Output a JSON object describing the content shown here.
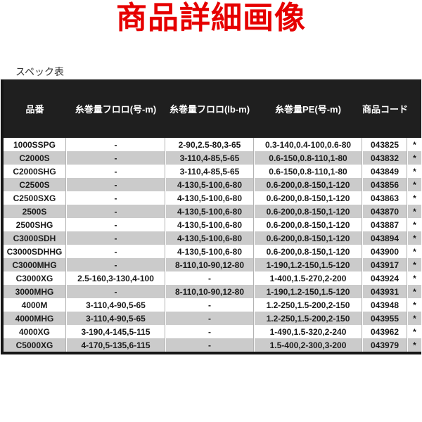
{
  "title": {
    "text": "商品詳細画像",
    "color": "#e60000"
  },
  "table": {
    "caption": "スペック表",
    "columns": [
      "品番",
      "糸巻量フロロ(号-m)",
      "糸巻量フロロ(lb-m)",
      "糸巻量PE(号-m)",
      "商品コード",
      ""
    ],
    "rows": [
      [
        "1000SSPG",
        "-",
        "2-90,2.5-80,3-65",
        "0.3-140,0.4-100,0.6-80",
        "043825",
        "*"
      ],
      [
        "C2000S",
        "-",
        "3-110,4-85,5-65",
        "0.6-150,0.8-110,1-80",
        "043832",
        "*"
      ],
      [
        "C2000SHG",
        "-",
        "3-110,4-85,5-65",
        "0.6-150,0.8-110,1-80",
        "043849",
        "*"
      ],
      [
        "C2500S",
        "-",
        "4-130,5-100,6-80",
        "0.6-200,0.8-150,1-120",
        "043856",
        "*"
      ],
      [
        "C2500SXG",
        "-",
        "4-130,5-100,6-80",
        "0.6-200,0.8-150,1-120",
        "043863",
        "*"
      ],
      [
        "2500S",
        "-",
        "4-130,5-100,6-80",
        "0.6-200,0.8-150,1-120",
        "043870",
        "*"
      ],
      [
        "2500SHG",
        "-",
        "4-130,5-100,6-80",
        "0.6-200,0.8-150,1-120",
        "043887",
        "*"
      ],
      [
        "C3000SDH",
        "-",
        "4-130,5-100,6-80",
        "0.6-200,0.8-150,1-120",
        "043894",
        "*"
      ],
      [
        "C3000SDHHG",
        "-",
        "4-130,5-100,6-80",
        "0.6-200,0.8-150,1-120",
        "043900",
        "*"
      ],
      [
        "C3000MHG",
        "-",
        "8-110,10-90,12-80",
        "1-190,1.2-150,1.5-120",
        "043917",
        "*"
      ],
      [
        "C3000XG",
        "2.5-160,3-130,4-100",
        "-",
        "1-400,1.5-270,2-200",
        "043924",
        "*"
      ],
      [
        "3000MHG",
        "-",
        "8-110,10-90,12-80",
        "1-190,1.2-150,1.5-120",
        "043931",
        "*"
      ],
      [
        "4000M",
        "3-110,4-90,5-65",
        "-",
        "1.2-250,1.5-200,2-150",
        "043948",
        "*"
      ],
      [
        "4000MHG",
        "3-110,4-90,5-65",
        "-",
        "1.2-250,1.5-200,2-150",
        "043955",
        "*"
      ],
      [
        "4000XG",
        "3-190,4-145,5-115",
        "-",
        "1-490,1.5-320,2-240",
        "043962",
        "*"
      ],
      [
        "C5000XG",
        "4-170,5-135,6-115",
        "-",
        "1.5-400,2-300,3-200",
        "043979",
        "*"
      ]
    ],
    "colors": {
      "header_bg": "#1f1f1f",
      "header_text": "#ffffff",
      "row_bg": "#ffffff",
      "row_alt_bg": "#cbcbcb",
      "text": "#1a1a1a",
      "outer_border": "#161616"
    }
  }
}
